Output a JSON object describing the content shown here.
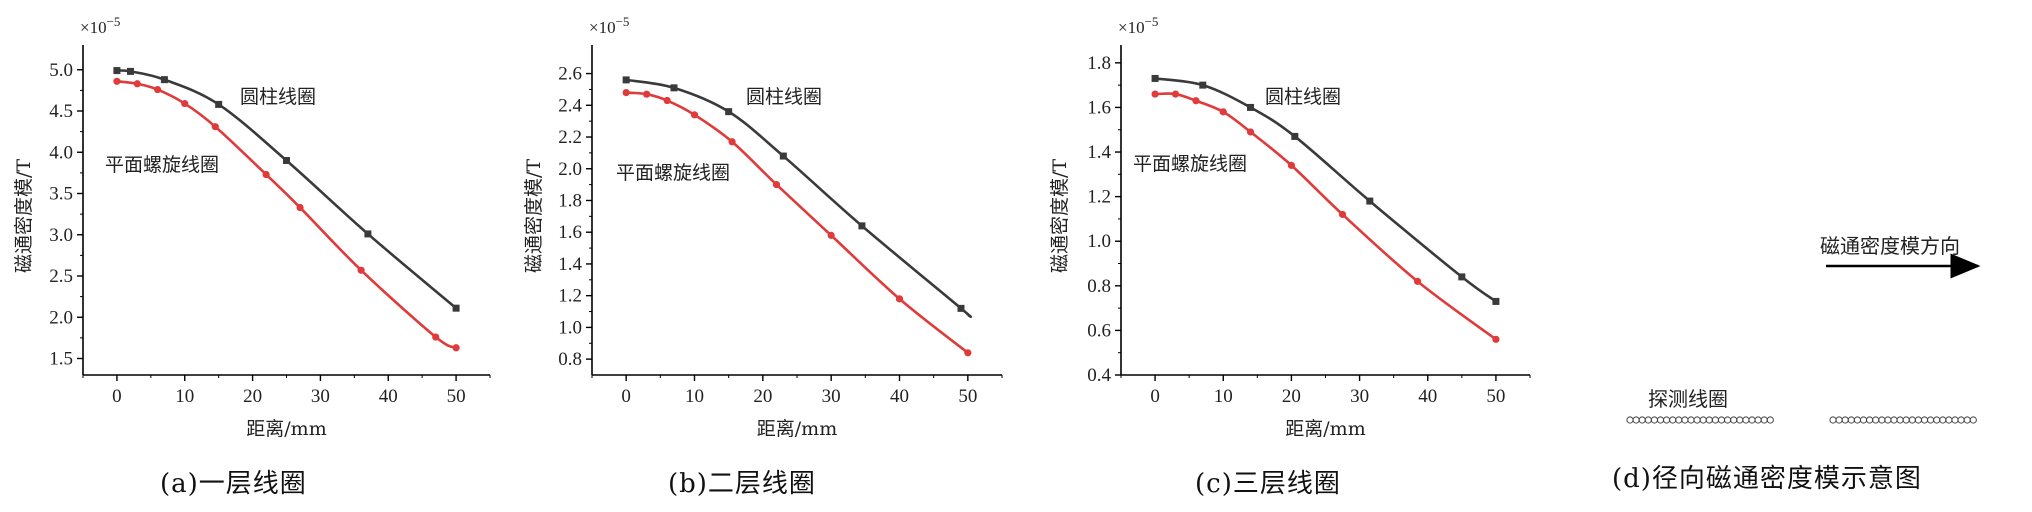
{
  "chart_data": [
    {
      "type": "line",
      "caption": "(a)一层线圈",
      "xlabel": "距离/mm",
      "ylabel": "磁通密度模/T",
      "exponent": "×10",
      "exponent_power": "−5",
      "xlim": [
        -5,
        55
      ],
      "ylim": [
        1.3,
        5.3
      ],
      "xticks": [
        0,
        10,
        20,
        30,
        40,
        50
      ],
      "yticks": [
        1.5,
        2.0,
        2.5,
        3.0,
        3.5,
        4.0,
        4.5,
        5.0
      ],
      "ytick_labels": [
        "1.5",
        "2.0",
        "2.5",
        "3.0",
        "3.5",
        "4.0",
        "4.5",
        "5.0"
      ],
      "series": [
        {
          "name": "圆柱线圈",
          "color": "#3a3a3a",
          "marker": "square",
          "x": [
            0,
            2,
            7,
            15,
            25,
            37,
            50
          ],
          "y": [
            4.99,
            4.98,
            4.88,
            4.58,
            3.9,
            3.01,
            2.11
          ]
        },
        {
          "name": "平面螺旋线圈",
          "color": "#e03a3a",
          "marker": "circle",
          "x": [
            0,
            3,
            6,
            10,
            14.5,
            22,
            27,
            36,
            47,
            50
          ],
          "y": [
            4.86,
            4.83,
            4.76,
            4.59,
            4.31,
            3.73,
            3.33,
            2.57,
            1.76,
            1.63
          ]
        }
      ]
    },
    {
      "type": "line",
      "caption": "(b)二层线圈",
      "xlabel": "距离/mm",
      "ylabel": "磁通密度模/T",
      "exponent": "×10",
      "exponent_power": "−5",
      "xlim": [
        -5,
        55
      ],
      "ylim": [
        0.7,
        2.78
      ],
      "xticks": [
        0,
        10,
        20,
        30,
        40,
        50
      ],
      "yticks": [
        0.8,
        1.0,
        1.2,
        1.4,
        1.6,
        1.8,
        2.0,
        2.2,
        2.4,
        2.6
      ],
      "ytick_labels": [
        "0.8",
        "1.0",
        "1.2",
        "1.4",
        "1.6",
        "1.8",
        "2.0",
        "2.2",
        "2.4",
        "2.6"
      ],
      "series": [
        {
          "name": "圆柱线圈",
          "color": "#3a3a3a",
          "marker": "square",
          "x": [
            0,
            7,
            15,
            23,
            34.5,
            49,
            50
          ],
          "y": [
            2.56,
            2.51,
            2.36,
            2.08,
            1.64,
            1.12,
            1.08
          ]
        },
        {
          "name": "平面螺旋线圈",
          "color": "#e03a3a",
          "marker": "circle",
          "x": [
            0,
            3,
            6,
            10,
            15.5,
            22,
            30,
            40,
            50
          ],
          "y": [
            2.48,
            2.47,
            2.43,
            2.34,
            2.17,
            1.9,
            1.58,
            1.18,
            0.84
          ]
        }
      ]
    },
    {
      "type": "line",
      "caption": "(c)三层线圈",
      "xlabel": "距离/mm",
      "ylabel": "磁通密度模/T",
      "exponent": "×10",
      "exponent_power": "−5",
      "xlim": [
        -5,
        55
      ],
      "ylim": [
        0.4,
        1.88
      ],
      "xticks": [
        0,
        10,
        20,
        30,
        40,
        50
      ],
      "yticks": [
        0.4,
        0.6,
        0.8,
        1.0,
        1.2,
        1.4,
        1.6,
        1.8
      ],
      "ytick_labels": [
        "0.4",
        "0.6",
        "0.8",
        "1.0",
        "1.2",
        "1.4",
        "1.6",
        "1.8"
      ],
      "series": [
        {
          "name": "圆柱线圈",
          "color": "#3a3a3a",
          "marker": "square",
          "x": [
            0,
            7,
            14,
            20.5,
            31.5,
            45,
            50
          ],
          "y": [
            1.73,
            1.7,
            1.6,
            1.47,
            1.18,
            0.84,
            0.73
          ]
        },
        {
          "name": "平面螺旋线圈",
          "color": "#e03a3a",
          "marker": "circle",
          "x": [
            0,
            3,
            6,
            10,
            14,
            20,
            27.5,
            38.5,
            50
          ],
          "y": [
            1.66,
            1.66,
            1.63,
            1.58,
            1.49,
            1.34,
            1.12,
            0.82,
            0.56
          ]
        }
      ]
    }
  ],
  "diagram_d": {
    "direction_label": "磁通密度模方向",
    "coil_label": "探测线圈",
    "caption": "(d)径向磁通密度模示意图"
  }
}
